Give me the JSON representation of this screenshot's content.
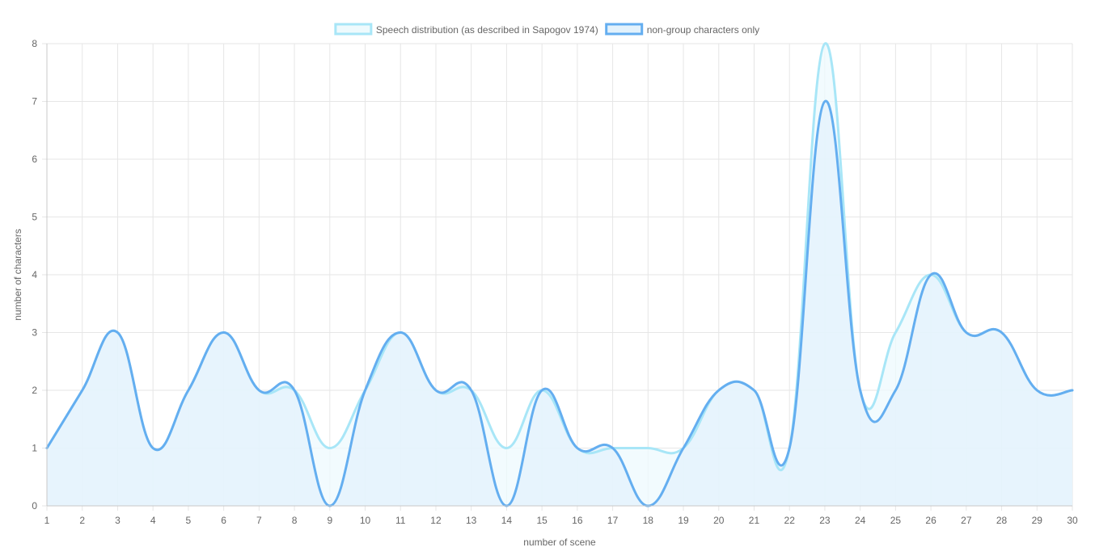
{
  "chart_data": {
    "type": "line",
    "x": [
      1,
      2,
      3,
      4,
      5,
      6,
      7,
      8,
      9,
      10,
      11,
      12,
      13,
      14,
      15,
      16,
      17,
      18,
      19,
      20,
      21,
      22,
      23,
      24,
      25,
      26,
      27,
      28,
      29,
      30
    ],
    "series": [
      {
        "name": "Speech distribution (as described in Sapogov 1974)",
        "values": [
          1,
          2,
          3,
          1,
          2,
          3,
          2,
          2,
          1,
          2,
          3,
          2,
          2,
          1,
          2,
          1,
          1,
          1,
          1,
          2,
          2,
          1,
          8,
          2,
          3,
          4,
          3,
          3,
          2,
          2
        ],
        "border_color": "#a8e6f7",
        "fill_color": "#eefafd"
      },
      {
        "name": "non-group characters only",
        "values": [
          1,
          2,
          3,
          1,
          2,
          3,
          2,
          2,
          0,
          2,
          3,
          2,
          2,
          0,
          2,
          1,
          1,
          0,
          1,
          2,
          2,
          1,
          7,
          2,
          2,
          4,
          3,
          3,
          2,
          2
        ],
        "border_color": "#64aef0",
        "fill_color": "#e3f2fc"
      }
    ],
    "xlabel": "number of scene",
    "ylabel": "number of characters",
    "ylim": [
      0,
      8
    ],
    "y_ticks": [
      0,
      1,
      2,
      3,
      4,
      5,
      6,
      7,
      8
    ],
    "grid": true,
    "legend_position": "top",
    "line_style": "smoothed"
  }
}
